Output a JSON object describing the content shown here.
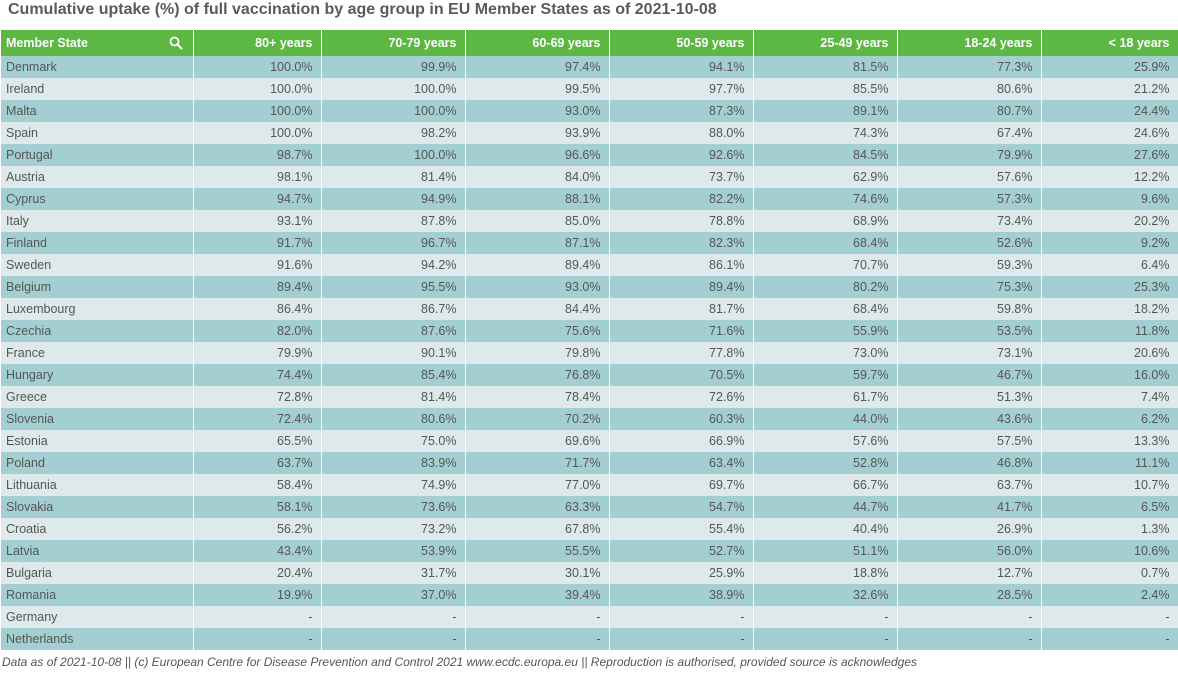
{
  "chart_data": {
    "type": "table",
    "title": "Cumulative uptake (%) of full vaccination by age group in EU Member States as of 2021-10-08",
    "columns": [
      "Member State",
      "80+ years",
      "70-79 years",
      "60-69 years",
      "50-59 years",
      "25-49 years",
      "18-24 years",
      "< 18 years"
    ],
    "rows": [
      [
        "Denmark",
        "100.0%",
        "99.9%",
        "97.4%",
        "94.1%",
        "81.5%",
        "77.3%",
        "25.9%"
      ],
      [
        "Ireland",
        "100.0%",
        "100.0%",
        "99.5%",
        "97.7%",
        "85.5%",
        "80.6%",
        "21.2%"
      ],
      [
        "Malta",
        "100.0%",
        "100.0%",
        "93.0%",
        "87.3%",
        "89.1%",
        "80.7%",
        "24.4%"
      ],
      [
        "Spain",
        "100.0%",
        "98.2%",
        "93.9%",
        "88.0%",
        "74.3%",
        "67.4%",
        "24.6%"
      ],
      [
        "Portugal",
        "98.7%",
        "100.0%",
        "96.6%",
        "92.6%",
        "84.5%",
        "79.9%",
        "27.6%"
      ],
      [
        "Austria",
        "98.1%",
        "81.4%",
        "84.0%",
        "73.7%",
        "62.9%",
        "57.6%",
        "12.2%"
      ],
      [
        "Cyprus",
        "94.7%",
        "94.9%",
        "88.1%",
        "82.2%",
        "74.6%",
        "57.3%",
        "9.6%"
      ],
      [
        "Italy",
        "93.1%",
        "87.8%",
        "85.0%",
        "78.8%",
        "68.9%",
        "73.4%",
        "20.2%"
      ],
      [
        "Finland",
        "91.7%",
        "96.7%",
        "87.1%",
        "82.3%",
        "68.4%",
        "52.6%",
        "9.2%"
      ],
      [
        "Sweden",
        "91.6%",
        "94.2%",
        "89.4%",
        "86.1%",
        "70.7%",
        "59.3%",
        "6.4%"
      ],
      [
        "Belgium",
        "89.4%",
        "95.5%",
        "93.0%",
        "89.4%",
        "80.2%",
        "75.3%",
        "25.3%"
      ],
      [
        "Luxembourg",
        "86.4%",
        "86.7%",
        "84.4%",
        "81.7%",
        "68.4%",
        "59.8%",
        "18.2%"
      ],
      [
        "Czechia",
        "82.0%",
        "87.6%",
        "75.6%",
        "71.6%",
        "55.9%",
        "53.5%",
        "11.8%"
      ],
      [
        "France",
        "79.9%",
        "90.1%",
        "79.8%",
        "77.8%",
        "73.0%",
        "73.1%",
        "20.6%"
      ],
      [
        "Hungary",
        "74.4%",
        "85.4%",
        "76.8%",
        "70.5%",
        "59.7%",
        "46.7%",
        "16.0%"
      ],
      [
        "Greece",
        "72.8%",
        "81.4%",
        "78.4%",
        "72.6%",
        "61.7%",
        "51.3%",
        "7.4%"
      ],
      [
        "Slovenia",
        "72.4%",
        "80.6%",
        "70.2%",
        "60.3%",
        "44.0%",
        "43.6%",
        "6.2%"
      ],
      [
        "Estonia",
        "65.5%",
        "75.0%",
        "69.6%",
        "66.9%",
        "57.6%",
        "57.5%",
        "13.3%"
      ],
      [
        "Poland",
        "63.7%",
        "83.9%",
        "71.7%",
        "63.4%",
        "52.8%",
        "46.8%",
        "11.1%"
      ],
      [
        "Lithuania",
        "58.4%",
        "74.9%",
        "77.0%",
        "69.7%",
        "66.7%",
        "63.7%",
        "10.7%"
      ],
      [
        "Slovakia",
        "58.1%",
        "73.6%",
        "63.3%",
        "54.7%",
        "44.7%",
        "41.7%",
        "6.5%"
      ],
      [
        "Croatia",
        "56.2%",
        "73.2%",
        "67.8%",
        "55.4%",
        "40.4%",
        "26.9%",
        "1.3%"
      ],
      [
        "Latvia",
        "43.4%",
        "53.9%",
        "55.5%",
        "52.7%",
        "51.1%",
        "56.0%",
        "10.6%"
      ],
      [
        "Bulgaria",
        "20.4%",
        "31.7%",
        "30.1%",
        "25.9%",
        "18.8%",
        "12.7%",
        "0.7%"
      ],
      [
        "Romania",
        "19.9%",
        "37.0%",
        "39.4%",
        "38.9%",
        "32.6%",
        "28.5%",
        "2.4%"
      ],
      [
        "Germany",
        "-",
        "-",
        "-",
        "-",
        "-",
        "-",
        "-"
      ],
      [
        "Netherlands",
        "-",
        "-",
        "-",
        "-",
        "-",
        "-",
        "-"
      ]
    ]
  },
  "footer": "Data as of 2021-10-08 || (c) European Centre for Disease Prevention and Control 2021 www.ecdc.europa.eu || Reproduction is authorised, provided source is acknowledges",
  "icons": {
    "search": "search-icon"
  },
  "colors": {
    "header_bg": "#5cb843",
    "row_odd": "#a3cfd3",
    "row_even": "#dde9ea",
    "title": "#5a5a5a",
    "text": "#555555"
  }
}
